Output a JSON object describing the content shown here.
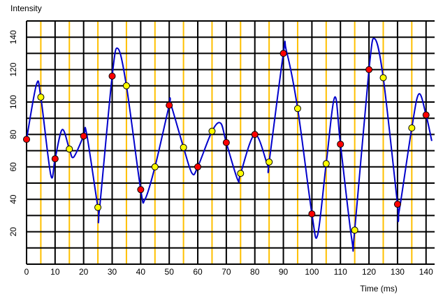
{
  "chart_data": {
    "type": "line",
    "y_label": "Intensity",
    "x_label": "Time (ms)",
    "xlim": [
      0,
      143
    ],
    "ylim": [
      0,
      150
    ],
    "xticks": [
      0,
      10,
      20,
      30,
      40,
      50,
      60,
      70,
      80,
      90,
      100,
      110,
      120,
      130,
      140
    ],
    "yticks": [
      20,
      40,
      60,
      80,
      100,
      120,
      140
    ],
    "ygrid": [
      10,
      20,
      30,
      40,
      50,
      60,
      70,
      80,
      90,
      100,
      110,
      120,
      130,
      140,
      150
    ],
    "xminor": [
      5,
      15,
      25,
      35,
      45,
      55,
      65,
      75,
      85,
      95,
      105,
      115,
      125,
      135
    ],
    "grid_color": "#000000",
    "minor_color": "#ffc000",
    "series": [
      {
        "color": "#0000cc",
        "marker": "none",
        "x": [
          0,
          3.5,
          5,
          8.5,
          10,
          12.5,
          15,
          16.5,
          20,
          21,
          25,
          25.5,
          30,
          32,
          35,
          40,
          41.5,
          45,
          50,
          50.5,
          55,
          58,
          60,
          65,
          68,
          70,
          74,
          75,
          80,
          84.5,
          85,
          90,
          91,
          95,
          100,
          102,
          105,
          108,
          110,
          114,
          115,
          120,
          122,
          125,
          130,
          130.5,
          135,
          137.5,
          140,
          142
        ],
        "values": [
          77,
          111,
          103,
          55,
          65,
          83,
          71,
          66,
          79,
          81,
          35,
          33,
          116,
          133,
          110,
          46,
          40,
          60,
          98,
          99,
          72,
          56,
          60,
          82,
          87,
          75,
          52,
          56,
          80,
          61,
          63,
          130,
          132,
          96,
          31,
          18,
          62,
          103,
          74,
          15,
          21,
          120,
          139,
          115,
          37,
          32,
          84,
          105,
          92,
          76
        ]
      },
      {
        "color": "#ff0000",
        "marker": "circle",
        "x": [
          0,
          10,
          20,
          30,
          40,
          50,
          60,
          70,
          80,
          90,
          100,
          110,
          120,
          130,
          140
        ],
        "values": [
          77,
          65,
          79,
          116,
          46,
          98,
          60,
          75,
          80,
          130,
          31,
          74,
          120,
          37,
          92
        ]
      },
      {
        "color": "#ffff00",
        "marker": "circle",
        "x": [
          5,
          15,
          25,
          35,
          45,
          55,
          65,
          75,
          85,
          95,
          105,
          115,
          125,
          135
        ],
        "values": [
          103,
          71,
          35,
          110,
          60,
          72,
          82,
          56,
          63,
          96,
          62,
          21,
          115,
          84
        ]
      }
    ]
  }
}
